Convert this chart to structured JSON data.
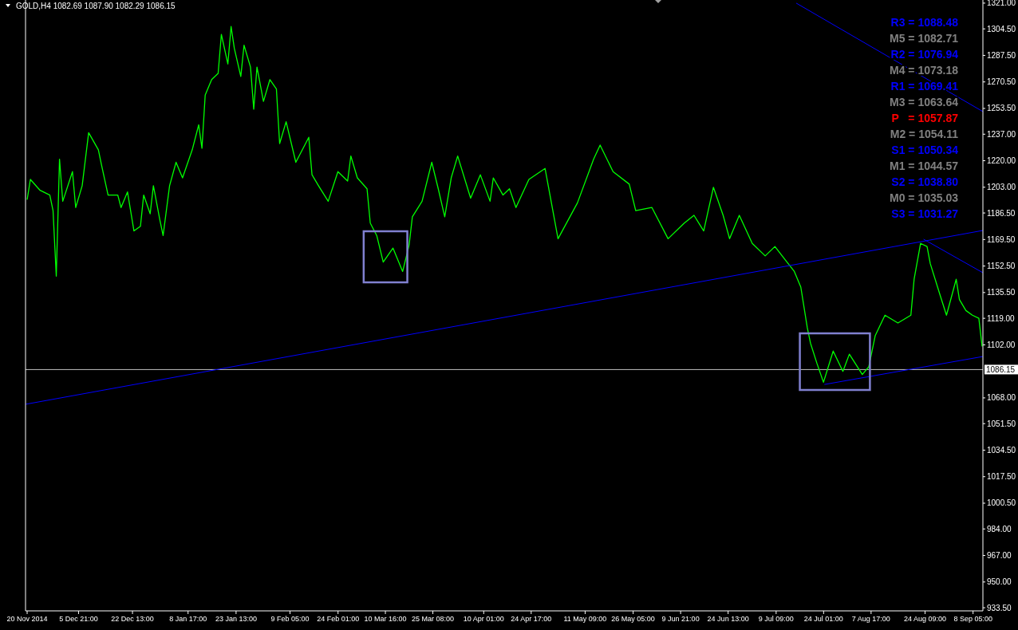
{
  "chart_data": {
    "type": "line",
    "title": "GOLD,H4 1082.69 1087.90 1082.29 1086.15",
    "xlim": [
      "2014-11-19T12:00",
      "2015-09-11T06:00"
    ],
    "ylim": [
      931.5,
      1323
    ],
    "xticks": [
      {
        "value": "2014-11-20T00:00",
        "label": "20 Nov 2014"
      },
      {
        "value": "2014-12-05T21:00",
        "label": "5 Dec 21:00"
      },
      {
        "value": "2014-12-22T13:00",
        "label": "22 Dec 13:00"
      },
      {
        "value": "2015-01-08T17:00",
        "label": "8 Jan 17:00"
      },
      {
        "value": "2015-01-23T13:00",
        "label": "23 Jan 13:00"
      },
      {
        "value": "2015-02-09T05:00",
        "label": "9 Feb 05:00"
      },
      {
        "value": "2015-02-24T01:00",
        "label": "24 Feb 01:00"
      },
      {
        "value": "2015-03-10T16:00",
        "label": "10 Mar 16:00"
      },
      {
        "value": "2015-03-25T08:00",
        "label": "25 Mar 08:00"
      },
      {
        "value": "2015-04-10T01:00",
        "label": "10 Apr 01:00"
      },
      {
        "value": "2015-04-24T17:00",
        "label": "24 Apr 17:00"
      },
      {
        "value": "2015-05-11T09:00",
        "label": "11 May 09:00"
      },
      {
        "value": "2015-05-26T05:00",
        "label": "26 May 05:00"
      },
      {
        "value": "2015-06-09T21:00",
        "label": "9 Jun 21:00"
      },
      {
        "value": "2015-06-24T13:00",
        "label": "24 Jun 13:00"
      },
      {
        "value": "2015-07-09T09:00",
        "label": "9 Jul 09:00"
      },
      {
        "value": "2015-07-24T01:00",
        "label": "24 Jul 01:00"
      },
      {
        "value": "2015-08-07T17:00",
        "label": "7 Aug 17:00"
      },
      {
        "value": "2015-08-24T09:00",
        "label": "24 Aug 09:00"
      },
      {
        "value": "2015-09-08T05:00",
        "label": "8 Sep 05:00"
      }
    ],
    "yticks": [
      {
        "value": 1321,
        "label": "1321.00"
      },
      {
        "value": 1304.5,
        "label": "1304.50"
      },
      {
        "value": 1287.5,
        "label": "1287.50"
      },
      {
        "value": 1270.5,
        "label": "1270.50"
      },
      {
        "value": 1253.5,
        "label": "1253.50"
      },
      {
        "value": 1237,
        "label": "1237.00"
      },
      {
        "value": 1220,
        "label": "1220.00"
      },
      {
        "value": 1203,
        "label": "1203.00"
      },
      {
        "value": 1186.5,
        "label": "1186.50"
      },
      {
        "value": 1169.5,
        "label": "1169.50"
      },
      {
        "value": 1152.5,
        "label": "1152.50"
      },
      {
        "value": 1135.5,
        "label": "1135.50"
      },
      {
        "value": 1119,
        "label": "1119.00"
      },
      {
        "value": 1102,
        "label": "1102.00"
      },
      {
        "value": 1068,
        "label": "1068.00"
      },
      {
        "value": 1051.5,
        "label": "1051.50"
      },
      {
        "value": 1034.5,
        "label": "1034.50"
      },
      {
        "value": 1017.5,
        "label": "1017.50"
      },
      {
        "value": 1000.5,
        "label": "1000.50"
      },
      {
        "value": 984,
        "label": "984.00"
      },
      {
        "value": 967,
        "label": "967.00"
      },
      {
        "value": 950,
        "label": "950.00"
      },
      {
        "value": 933.5,
        "label": "933.50"
      }
    ],
    "grid": false,
    "marker": "none",
    "line_style": "solid",
    "ref_lines": [
      {
        "axis": "y",
        "value": 1086.15,
        "label": "1086.15",
        "color": "#c0c0c0"
      }
    ],
    "annotations": [
      "R3 = 1088.48",
      "M5 = 1082.71",
      "R2 = 1076.94",
      "M4 = 1073.18",
      "R1 = 1069.41",
      "M3 = 1063.64",
      "P   = 1057.87",
      "M2 = 1054.11",
      "S1 = 1050.34",
      "M1 = 1044.57",
      "S2 = 1038.80",
      "M0 = 1035.03",
      "S3 = 1031.27"
    ],
    "series": [
      {
        "color": "#00ff00",
        "x": [
          "2014-11-20",
          "2014-11-21",
          "2014-11-24",
          "2014-11-27",
          "2014-11-28",
          "2014-11-29",
          "2014-11-30",
          "2014-12-01",
          "2014-12-04",
          "2014-12-05",
          "2014-12-07",
          "2014-12-09",
          "2014-12-12",
          "2014-12-13",
          "2014-12-15",
          "2014-12-18",
          "2014-12-19",
          "2014-12-21",
          "2014-12-23",
          "2014-12-25",
          "2014-12-26",
          "2014-12-28",
          "2014-12-29",
          "2014-12-31",
          "2015-01-01",
          "2015-01-03",
          "2015-01-05",
          "2015-01-07",
          "2015-01-10",
          "2015-01-12",
          "2015-01-13",
          "2015-01-14",
          "2015-01-16",
          "2015-01-18",
          "2015-01-19",
          "2015-01-21",
          "2015-01-22",
          "2015-01-23",
          "2015-01-25",
          "2015-01-26",
          "2015-01-28",
          "2015-01-29",
          "2015-01-30",
          "2015-02-01",
          "2015-02-03",
          "2015-02-05",
          "2015-02-06",
          "2015-02-08",
          "2015-02-11",
          "2015-02-15",
          "2015-02-16",
          "2015-02-18",
          "2015-02-21",
          "2015-02-24",
          "2015-02-27",
          "2015-02-28",
          "2015-03-02",
          "2015-03-05",
          "2015-03-06",
          "2015-03-08",
          "2015-03-10",
          "2015-03-13",
          "2015-03-16",
          "2015-03-18",
          "2015-03-19",
          "2015-03-22",
          "2015-03-25",
          "2015-03-27",
          "2015-03-29",
          "2015-03-31",
          "2015-04-02",
          "2015-04-06",
          "2015-04-09",
          "2015-04-12",
          "2015-04-13",
          "2015-04-16",
          "2015-04-18",
          "2015-04-20",
          "2015-04-24",
          "2015-04-29",
          "2015-05-03",
          "2015-05-09",
          "2015-05-14",
          "2015-05-16",
          "2015-05-20",
          "2015-05-25",
          "2015-05-27",
          "2015-06-01",
          "2015-06-06",
          "2015-06-11",
          "2015-06-14",
          "2015-06-17",
          "2015-06-20",
          "2015-06-23",
          "2015-06-25",
          "2015-06-28",
          "2015-07-02",
          "2015-07-06",
          "2015-07-09",
          "2015-07-12",
          "2015-07-15",
          "2015-07-17",
          "2015-07-19",
          "2015-07-20",
          "2015-07-22",
          "2015-07-24",
          "2015-07-27",
          "2015-07-30",
          "2015-08-01",
          "2015-08-05",
          "2015-08-07",
          "2015-08-09",
          "2015-08-12",
          "2015-08-16",
          "2015-08-20",
          "2015-08-21",
          "2015-08-23",
          "2015-08-25",
          "2015-08-26",
          "2015-08-29",
          "2015-08-31",
          "2015-09-03",
          "2015-09-04",
          "2015-09-06",
          "2015-09-08",
          "2015-09-10",
          "2015-09-11"
        ],
        "values": [
          1195,
          1208,
          1201,
          1198,
          1188,
          1146,
          1221,
          1194,
          1213,
          1190,
          1204,
          1238,
          1227,
          1217,
          1198,
          1198,
          1190,
          1200,
          1175,
          1178,
          1198,
          1186,
          1204,
          1182,
          1172,
          1204,
          1219,
          1209,
          1227,
          1243,
          1228,
          1262,
          1272,
          1276,
          1301,
          1282,
          1306,
          1292,
          1274,
          1294,
          1280,
          1253,
          1280,
          1258,
          1272,
          1266,
          1231,
          1245,
          1219,
          1235,
          1211,
          1204,
          1194,
          1213,
          1207,
          1223,
          1209,
          1202,
          1180,
          1172,
          1155,
          1164,
          1149,
          1166,
          1184,
          1194,
          1219,
          1202,
          1184,
          1209,
          1223,
          1196,
          1211,
          1194,
          1209,
          1198,
          1202,
          1190,
          1208,
          1215,
          1170,
          1193,
          1221,
          1230,
          1213,
          1205,
          1188,
          1190,
          1170,
          1180,
          1185,
          1175,
          1203,
          1185,
          1170,
          1185,
          1167,
          1159,
          1165,
          1157,
          1149,
          1139,
          1113,
          1103,
          1090,
          1078,
          1098,
          1085,
          1096,
          1083,
          1088,
          1108,
          1121,
          1116,
          1121,
          1144,
          1167,
          1165,
          1154,
          1134,
          1121,
          1144,
          1131,
          1124,
          1121,
          1119,
          1101
        ]
      },
      {
        "color": "#0000ff",
        "x": [
          "2014-11-19T12:00",
          "2015-09-11T06:00"
        ],
        "values": [
          1063.9,
          1175.3
        ]
      },
      {
        "color": "#0000ff",
        "x": [
          "2015-07-24T07:00",
          "2015-09-11T06:00"
        ],
        "values": [
          1076.6,
          1094.5
        ]
      },
      {
        "color": "#0000ff",
        "x": [
          "2015-07-15T14:00",
          "2015-09-11T06:00"
        ],
        "values": [
          1321,
          1251.5
        ]
      },
      {
        "color": "#0000ff",
        "x": [
          "2015-08-23T22:00",
          "2015-09-11T06:00"
        ],
        "values": [
          1169.7,
          1148.2
        ]
      }
    ]
  }
}
